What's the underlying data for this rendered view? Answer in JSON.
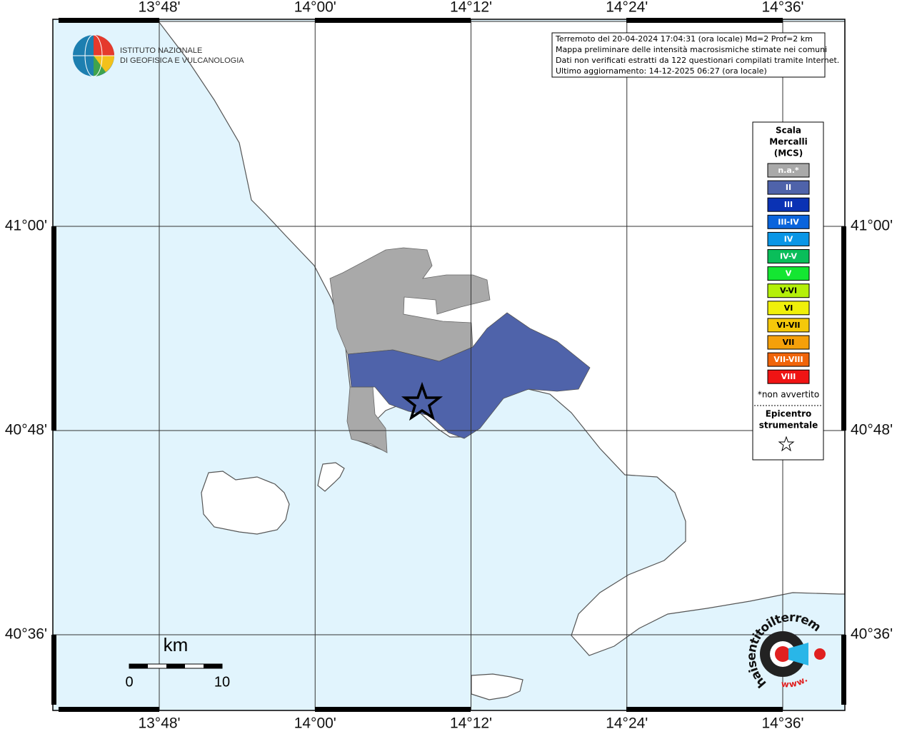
{
  "map": {
    "lon_labels": [
      "13°48'",
      "14°00'",
      "14°12'",
      "14°24'",
      "14°36'"
    ],
    "lat_labels": [
      "41°00'",
      "40°48'",
      "40°36'"
    ],
    "logo": {
      "line1": "ISTITUTO NAZIONALE",
      "line2": "DI GEOFISICA E VULCANOLOGIA"
    },
    "info": [
      "Terremoto del 20-04-2024 17:04:31 (ora locale) Md=2 Prof=2 km",
      "Mappa preliminare delle intensità macrosismiche stimate nei comuni",
      "Dati non verificati estratti da 122 questionari compilati tramite Internet.",
      "Ultimo aggiornamento: 14-12-2025 06:27 (ora locale)"
    ],
    "legend": {
      "title": [
        "Scala",
        "Mercalli",
        "(MCS)"
      ],
      "classes": [
        {
          "label": "n.a.*",
          "color": "#a9a9a9"
        },
        {
          "label": "II",
          "color": "#4f63aa"
        },
        {
          "label": "III",
          "color": "#0a32b4"
        },
        {
          "label": "III-IV",
          "color": "#0a64dc"
        },
        {
          "label": "IV",
          "color": "#0a96e6"
        },
        {
          "label": "IV-V",
          "color": "#0abe5a"
        },
        {
          "label": "V",
          "color": "#14e632"
        },
        {
          "label": "V-VI",
          "color": "#b4f00a"
        },
        {
          "label": "VI",
          "color": "#f0f00a"
        },
        {
          "label": "VI-VII",
          "color": "#f5c80a"
        },
        {
          "label": "VII",
          "color": "#f5a00a"
        },
        {
          "label": "VII-VIII",
          "color": "#f0640a"
        },
        {
          "label": "VIII",
          "color": "#f01414"
        }
      ],
      "note": "*non avvertito",
      "epicenter": [
        "Epicentro",
        "strumentale"
      ]
    },
    "scale_bar": {
      "unit": "km",
      "labels": [
        "0",
        "10"
      ]
    },
    "site_logo": {
      "url": "haisentitoilterremoto.it",
      "prefix": "www."
    }
  }
}
